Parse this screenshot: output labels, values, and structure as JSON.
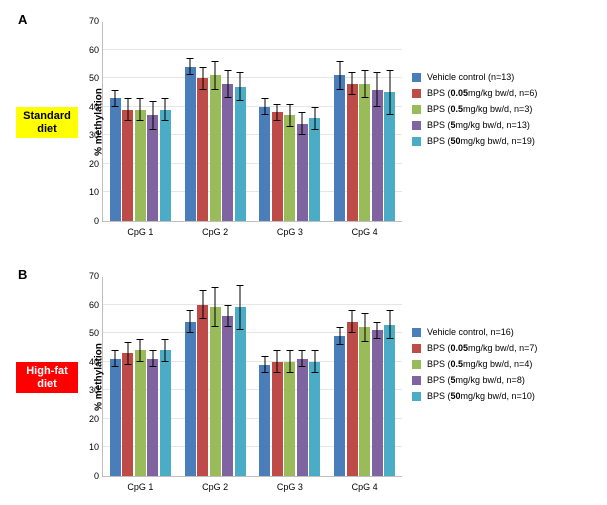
{
  "colors": {
    "series": [
      "#4a7ebb",
      "#be4b48",
      "#9abb59",
      "#8064a2",
      "#4bacc6"
    ],
    "grid": "#e6e6e6",
    "border": "#bfbfbf",
    "std_diet_bg": "#ffff00",
    "std_diet_fg": "#000000",
    "hf_diet_bg": "#ff0000",
    "hf_diet_fg": "#ffffff"
  },
  "ylim": [
    0,
    70
  ],
  "ytick_step": 10,
  "panels": [
    {
      "letter": "A",
      "diet_label": "Standard\ndiet",
      "diet_bg_key": "std_diet_bg",
      "diet_fg_key": "std_diet_fg",
      "ylabel": "% methylation",
      "legend": [
        "Vehicle control (n=13)",
        "BPS (0.05 mg/kg bw/d, n=6)",
        "BPS (0.5 mg/kg bw/d, n=3)",
        "BPS (5 mg/kg bw/d, n=13)",
        "BPS (50 mg/kg bw/d, n=19)"
      ],
      "categories": [
        "CpG 1",
        "CpG 2",
        "CpG 3",
        "CpG 4"
      ],
      "values": [
        [
          43,
          39,
          39,
          37,
          39
        ],
        [
          54,
          50,
          51,
          48,
          47
        ],
        [
          40,
          38,
          37,
          34,
          36
        ],
        [
          51,
          48,
          48,
          46,
          45
        ]
      ],
      "errors": [
        [
          3,
          4,
          4,
          5,
          4
        ],
        [
          3,
          4,
          5,
          5,
          5
        ],
        [
          3,
          3,
          4,
          4,
          4
        ],
        [
          5,
          4,
          5,
          6,
          8
        ]
      ]
    },
    {
      "letter": "B",
      "diet_label": "High-fat\ndiet",
      "diet_bg_key": "hf_diet_bg",
      "diet_fg_key": "hf_diet_fg",
      "ylabel": "% methylation",
      "legend": [
        "Vehicle control, n=16)",
        "BPS (0.05 mg/kg bw/d, n=7)",
        "BPS (0.5 mg/kg bw/d, n=4)",
        "BPS (5 mg/kg bw/d, n=8)",
        "BPS (50 mg/kg bw/d, n=10)"
      ],
      "categories": [
        "CpG 1",
        "CpG 2",
        "CpG 3",
        "CpG 4"
      ],
      "values": [
        [
          41,
          43,
          44,
          41,
          44
        ],
        [
          54,
          60,
          59,
          56,
          59
        ],
        [
          39,
          40,
          40,
          41,
          40
        ],
        [
          49,
          54,
          52,
          51,
          53
        ]
      ],
      "errors": [
        [
          3,
          4,
          4,
          3,
          4
        ],
        [
          4,
          5,
          7,
          4,
          8
        ],
        [
          3,
          4,
          4,
          3,
          4
        ],
        [
          3,
          4,
          5,
          3,
          5
        ]
      ]
    }
  ]
}
